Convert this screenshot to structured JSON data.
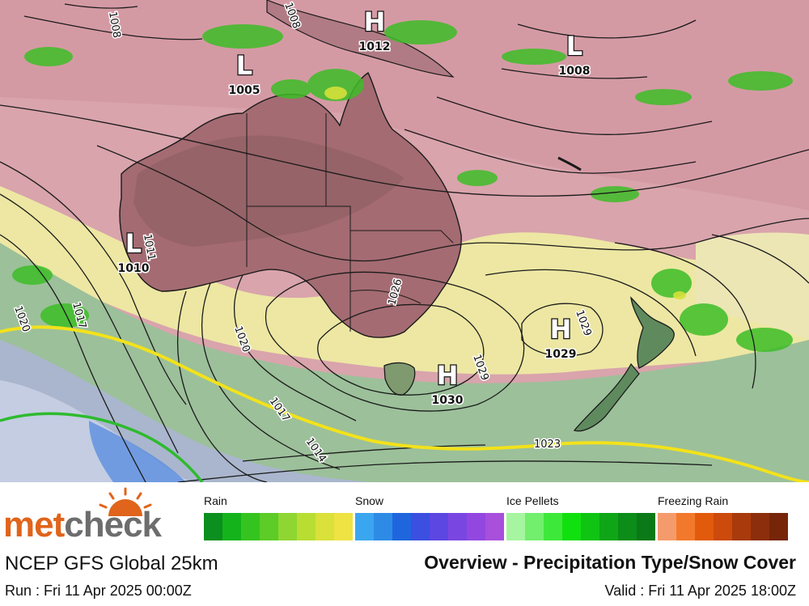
{
  "map": {
    "pressure_systems": [
      {
        "type": "H",
        "value": "1012"
      },
      {
        "type": "L",
        "value": "1008"
      },
      {
        "type": "L",
        "value": "1005"
      },
      {
        "type": "L",
        "value": "1010"
      },
      {
        "type": "H",
        "value": "1029"
      },
      {
        "type": "H",
        "value": "1030"
      }
    ],
    "isobar_labels": [
      "1011",
      "1020",
      "1017",
      "1020",
      "1026",
      "1029",
      "1029",
      "1017",
      "1014",
      "1023",
      "1008",
      "1008"
    ]
  },
  "footer": {
    "brand_met": "met",
    "brand_check": "check",
    "model": "NCEP GFS Global 25km",
    "title": "Overview - Precipitation Type/Snow Cover",
    "run": "Run : Fri 11 Apr 2025 00:00Z",
    "valid": "Valid : Fri 11 Apr 2025 18:00Z"
  },
  "legend": [
    {
      "label": "Rain",
      "colors": [
        "#0b8f1e",
        "#14b31c",
        "#35c41f",
        "#5dcc26",
        "#8fd632",
        "#b8dd33",
        "#d9e13a",
        "#eee343"
      ]
    },
    {
      "label": "Snow",
      "colors": [
        "#3aa6ef",
        "#2d8be6",
        "#1f66de",
        "#3b4fe0",
        "#5c47e2",
        "#7a46e2",
        "#9247e0",
        "#a84fdc"
      ]
    },
    {
      "label": "Ice Pellets",
      "colors": [
        "#a6f5a0",
        "#72ef6c",
        "#3ee83a",
        "#11e00f",
        "#0fc413",
        "#0ea616",
        "#0c8c18",
        "#0a7a18"
      ]
    },
    {
      "label": "Freezing Rain",
      "colors": [
        "#f59b6b",
        "#f2792c",
        "#e25a0b",
        "#cc4a0b",
        "#a83a0c",
        "#8c2e0c",
        "#762509"
      ]
    }
  ]
}
